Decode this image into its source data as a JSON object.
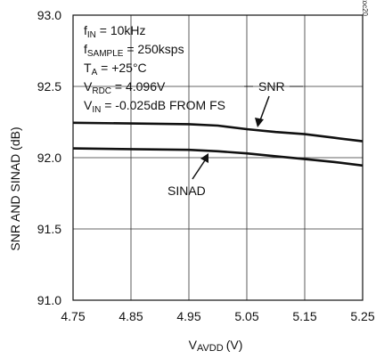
{
  "chart_data": {
    "type": "line",
    "xlabel_main": "V",
    "xlabel_sub": "AVDD",
    "xlabel_unit": "(V)",
    "ylabel": "SNR AND SINAD (dB)",
    "xlim": [
      4.75,
      5.25
    ],
    "ylim": [
      91.0,
      93.0
    ],
    "x_ticks": [
      "4.75",
      "4.85",
      "4.95",
      "5.05",
      "5.15",
      "5.25"
    ],
    "y_ticks": [
      "91.0",
      "91.5",
      "92.0",
      "92.5",
      "93.0"
    ],
    "grid": true,
    "series": [
      {
        "name": "SNR",
        "x": [
          4.75,
          4.85,
          4.95,
          5.0,
          5.05,
          5.1,
          5.15,
          5.2,
          5.25
        ],
        "y": [
          92.245,
          92.24,
          92.235,
          92.225,
          92.2,
          92.18,
          92.165,
          92.14,
          92.115
        ]
      },
      {
        "name": "SINAD",
        "x": [
          4.75,
          4.85,
          4.95,
          5.0,
          5.05,
          5.1,
          5.15,
          5.2,
          5.25
        ],
        "y": [
          92.065,
          92.06,
          92.055,
          92.045,
          92.03,
          92.01,
          91.99,
          91.97,
          91.945
        ]
      }
    ],
    "conditions": [
      {
        "main": "f",
        "sub": "IN",
        "rest": " = 10kHz"
      },
      {
        "main": "f",
        "sub": "SAMPLE",
        "rest": " = 250ksps"
      },
      {
        "main": "T",
        "sub": "A",
        "rest": " = +25°C"
      },
      {
        "main": "V",
        "sub": "RDC",
        "rest": " = 4.096V"
      },
      {
        "main": "V",
        "sub": "IN",
        "rest": " = -0.025dB FROM FS"
      }
    ],
    "watermark": "MAX11047 toc20"
  }
}
